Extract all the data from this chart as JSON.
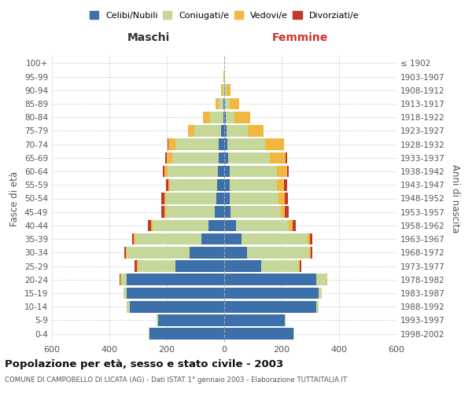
{
  "age_groups": [
    "0-4",
    "5-9",
    "10-14",
    "15-19",
    "20-24",
    "25-29",
    "30-34",
    "35-39",
    "40-44",
    "45-49",
    "50-54",
    "55-59",
    "60-64",
    "65-69",
    "70-74",
    "75-79",
    "80-84",
    "85-89",
    "90-94",
    "95-99",
    "100+"
  ],
  "birth_years": [
    "1998-2002",
    "1993-1997",
    "1988-1992",
    "1983-1987",
    "1978-1982",
    "1973-1977",
    "1968-1972",
    "1963-1967",
    "1958-1962",
    "1953-1957",
    "1948-1952",
    "1943-1947",
    "1938-1942",
    "1933-1937",
    "1928-1932",
    "1923-1927",
    "1918-1922",
    "1913-1917",
    "1908-1912",
    "1903-1907",
    "≤ 1902"
  ],
  "maschi": {
    "celibi": [
      260,
      230,
      330,
      340,
      340,
      170,
      120,
      80,
      55,
      32,
      28,
      24,
      22,
      20,
      20,
      10,
      4,
      2,
      0,
      0,
      0
    ],
    "coniugati": [
      3,
      5,
      10,
      10,
      20,
      130,
      220,
      230,
      195,
      170,
      175,
      165,
      175,
      160,
      150,
      95,
      45,
      18,
      5,
      1,
      0
    ],
    "vedovi": [
      0,
      0,
      1,
      1,
      2,
      3,
      3,
      5,
      5,
      5,
      5,
      5,
      10,
      20,
      25,
      20,
      25,
      10,
      5,
      1,
      0
    ],
    "divorziati": [
      0,
      0,
      0,
      0,
      2,
      8,
      5,
      5,
      12,
      12,
      12,
      10,
      8,
      5,
      2,
      0,
      0,
      0,
      0,
      0,
      0
    ]
  },
  "femmine": {
    "nubili": [
      240,
      210,
      320,
      330,
      320,
      130,
      80,
      60,
      40,
      22,
      20,
      18,
      18,
      15,
      12,
      8,
      5,
      3,
      2,
      0,
      0
    ],
    "coniugate": [
      3,
      4,
      8,
      10,
      35,
      130,
      215,
      230,
      185,
      175,
      170,
      165,
      165,
      145,
      130,
      75,
      30,
      15,
      5,
      0,
      0
    ],
    "vedove": [
      0,
      0,
      1,
      1,
      3,
      4,
      5,
      8,
      12,
      15,
      20,
      25,
      35,
      55,
      65,
      55,
      55,
      35,
      15,
      2,
      0
    ],
    "divorziate": [
      0,
      0,
      0,
      0,
      2,
      5,
      8,
      8,
      12,
      12,
      12,
      10,
      8,
      3,
      2,
      0,
      0,
      0,
      0,
      0,
      0
    ]
  },
  "colors": {
    "celibi": "#3d6faa",
    "coniugati": "#c5d89a",
    "vedovi": "#f0b840",
    "divorziati": "#c0392b"
  },
  "xlim": [
    -600,
    600
  ],
  "xticks": [
    -600,
    -400,
    -200,
    0,
    200,
    400,
    600
  ],
  "xlabel_maschi": "Maschi",
  "xlabel_femmine": "Femmine",
  "ylabel_left": "Fasce di età",
  "ylabel_right": "Anni di nascita",
  "title": "Popolazione per età, sesso e stato civile - 2003",
  "subtitle": "COMUNE DI CAMPOBELLO DI LICATA (AG) - Dati ISTAT 1° gennaio 2003 - Elaborazione TUTTAITALIA.IT",
  "legend_labels": [
    "Celibi/Nubili",
    "Coniugati/e",
    "Vedovi/e",
    "Divorziati/e"
  ],
  "legend_colors": [
    "#3d6faa",
    "#c5d89a",
    "#f0b840",
    "#c0392b"
  ],
  "bar_height": 0.85,
  "background_color": "#ffffff",
  "grid_color": "#cccccc"
}
